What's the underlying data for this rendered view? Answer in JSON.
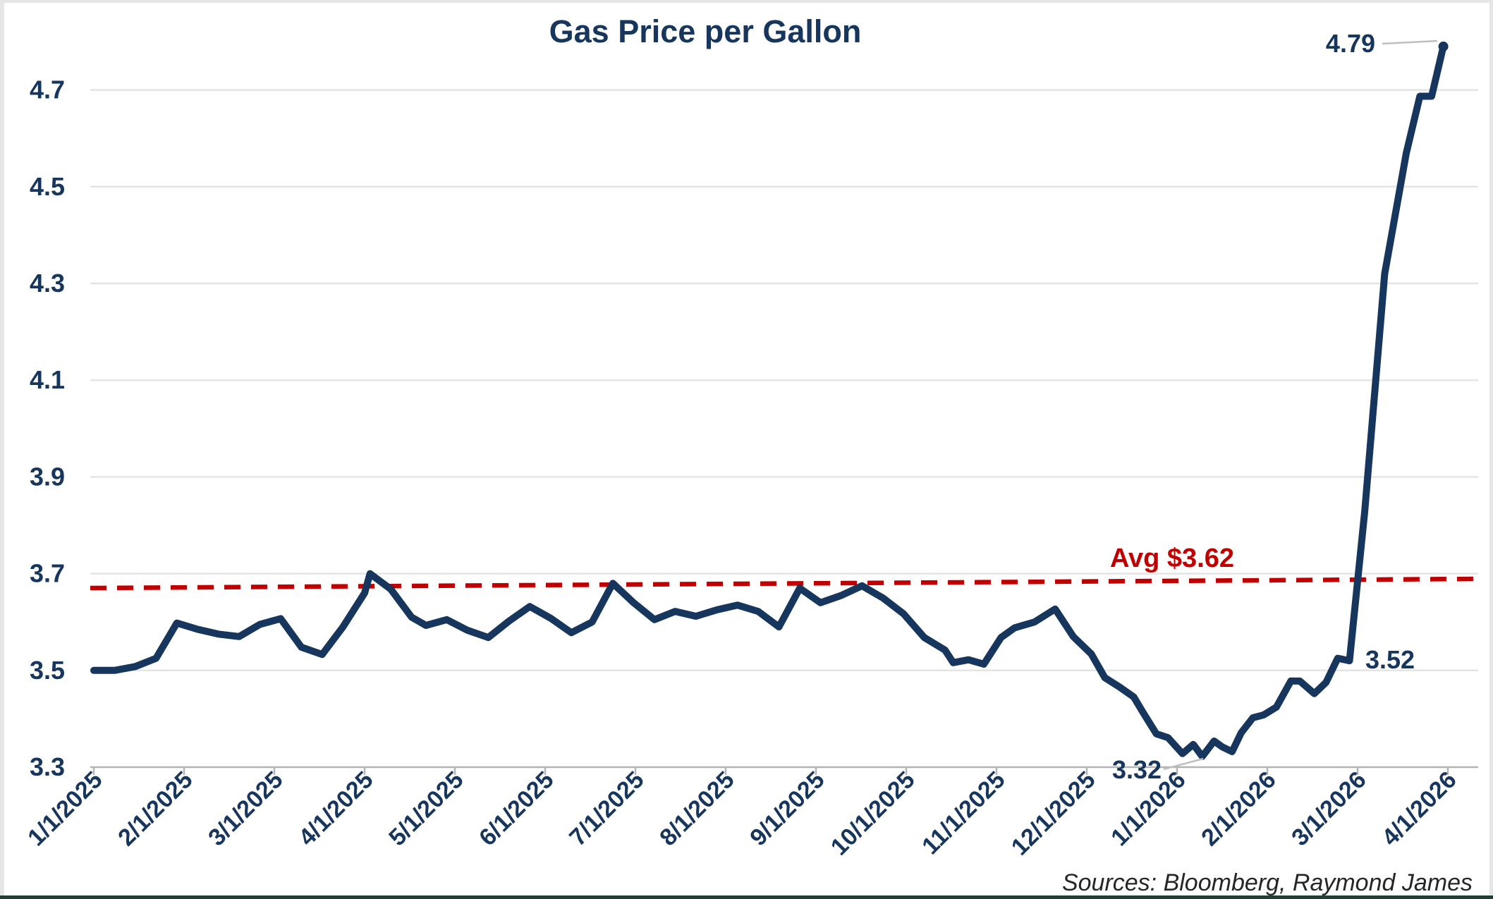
{
  "title": "Gas Price per Gallon",
  "source_note": "Sources: Bloomberg, Raymond James",
  "colors": {
    "line": "#17365d",
    "avg_line": "#c00000",
    "grid": "#e4e4e4",
    "axis": "#b4b4b4",
    "labels": "#17365d",
    "leader": "#bfbfbf",
    "source_text": "#262626",
    "frame": "#e6e6e6",
    "bottom_bar": "#223f36"
  },
  "chart_data": {
    "type": "line",
    "title": "Gas Price per Gallon",
    "x_labels": [
      "1/1/2025",
      "2/1/2025",
      "3/1/2025",
      "4/1/2025",
      "5/1/2025",
      "6/1/2025",
      "7/1/2025",
      "8/1/2025",
      "9/1/2025",
      "10/1/2025",
      "11/1/2025",
      "12/1/2025",
      "1/1/2026",
      "2/1/2026",
      "3/1/2026",
      "4/1/2026"
    ],
    "y_ticks": [
      3.3,
      3.5,
      3.7,
      3.9,
      4.1,
      4.3,
      4.5,
      4.7
    ],
    "ylim": [
      3.3,
      4.8
    ],
    "x_range_months": 15,
    "grid": "horizontal",
    "legend": "none",
    "avg_line": {
      "label": "Avg $3.62",
      "value": 3.62,
      "color": "#c00000",
      "style": "dashed"
    },
    "annotations": [
      {
        "text": "4.79",
        "point_month": 14.95,
        "point_value": 4.79
      },
      {
        "text": "3.52",
        "point_month": 13.91,
        "point_value": 3.52
      },
      {
        "text": "3.32",
        "point_month": 12.28,
        "point_value": 3.32
      }
    ],
    "series": [
      {
        "name": "Gas Price per Gallon",
        "color": "#17365d",
        "points": [
          [
            0.0,
            3.5
          ],
          [
            0.23,
            3.5
          ],
          [
            0.46,
            3.508
          ],
          [
            0.69,
            3.525
          ],
          [
            0.92,
            3.598
          ],
          [
            1.15,
            3.585
          ],
          [
            1.38,
            3.575
          ],
          [
            1.61,
            3.57
          ],
          [
            1.84,
            3.595
          ],
          [
            2.07,
            3.607
          ],
          [
            2.3,
            3.548
          ],
          [
            2.53,
            3.533
          ],
          [
            2.76,
            3.59
          ],
          [
            3.0,
            3.66
          ],
          [
            3.06,
            3.7
          ],
          [
            3.29,
            3.668
          ],
          [
            3.52,
            3.61
          ],
          [
            3.68,
            3.593
          ],
          [
            3.91,
            3.605
          ],
          [
            4.14,
            3.583
          ],
          [
            4.37,
            3.568
          ],
          [
            4.6,
            3.602
          ],
          [
            4.83,
            3.632
          ],
          [
            5.06,
            3.608
          ],
          [
            5.29,
            3.578
          ],
          [
            5.52,
            3.6
          ],
          [
            5.75,
            3.68
          ],
          [
            5.98,
            3.64
          ],
          [
            6.21,
            3.605
          ],
          [
            6.44,
            3.622
          ],
          [
            6.67,
            3.612
          ],
          [
            6.9,
            3.625
          ],
          [
            7.13,
            3.635
          ],
          [
            7.36,
            3.622
          ],
          [
            7.59,
            3.59
          ],
          [
            7.82,
            3.67
          ],
          [
            8.05,
            3.64
          ],
          [
            8.28,
            3.655
          ],
          [
            8.51,
            3.675
          ],
          [
            8.74,
            3.65
          ],
          [
            8.97,
            3.617
          ],
          [
            9.2,
            3.568
          ],
          [
            9.43,
            3.542
          ],
          [
            9.52,
            3.516
          ],
          [
            9.69,
            3.522
          ],
          [
            9.86,
            3.513
          ],
          [
            10.05,
            3.568
          ],
          [
            10.2,
            3.588
          ],
          [
            10.42,
            3.6
          ],
          [
            10.65,
            3.627
          ],
          [
            10.85,
            3.57
          ],
          [
            11.05,
            3.534
          ],
          [
            11.2,
            3.485
          ],
          [
            11.36,
            3.466
          ],
          [
            11.52,
            3.445
          ],
          [
            11.64,
            3.408
          ],
          [
            11.77,
            3.369
          ],
          [
            11.9,
            3.361
          ],
          [
            12.06,
            3.328
          ],
          [
            12.18,
            3.347
          ],
          [
            12.28,
            3.322
          ],
          [
            12.41,
            3.354
          ],
          [
            12.5,
            3.342
          ],
          [
            12.61,
            3.332
          ],
          [
            12.71,
            3.371
          ],
          [
            12.84,
            3.402
          ],
          [
            12.96,
            3.408
          ],
          [
            13.1,
            3.424
          ],
          [
            13.26,
            3.478
          ],
          [
            13.36,
            3.478
          ],
          [
            13.52,
            3.452
          ],
          [
            13.65,
            3.475
          ],
          [
            13.78,
            3.525
          ],
          [
            13.91,
            3.52
          ],
          [
            14.08,
            3.83
          ],
          [
            14.3,
            4.32
          ],
          [
            14.54,
            4.57
          ],
          [
            14.69,
            4.687
          ],
          [
            14.82,
            4.687
          ],
          [
            14.95,
            4.79
          ]
        ]
      }
    ]
  }
}
